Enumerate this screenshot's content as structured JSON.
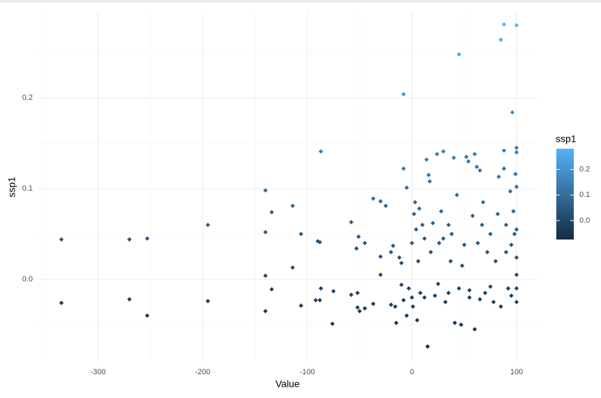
{
  "chart_data": {
    "type": "scatter",
    "x_label": "Value",
    "y_label": "ssp1",
    "x": [
      -335,
      -335,
      -270,
      -270,
      -253,
      -253,
      -195,
      -195,
      -140,
      -140,
      -140,
      -140,
      -134,
      -134,
      -114,
      -114,
      -106,
      -106,
      -90,
      -88,
      -92,
      -88,
      -87,
      -87,
      -75,
      -76,
      -58,
      -58,
      -53,
      -51,
      -52,
      -52,
      -50,
      -45,
      -45,
      -37,
      -37,
      -30,
      -30,
      -30,
      -25,
      -20,
      -20,
      -18,
      -16,
      -15,
      -12,
      -10,
      -10,
      -8,
      -8,
      -8,
      -5,
      -5,
      -3,
      0,
      0,
      1,
      2,
      3,
      4,
      5,
      6,
      7,
      8,
      10,
      12,
      14,
      15,
      16,
      17,
      18,
      20,
      22,
      24,
      26,
      28,
      30,
      32,
      35,
      37,
      38,
      40,
      41,
      43,
      45,
      45,
      47,
      50,
      52,
      54,
      55,
      58,
      60,
      60,
      62,
      63,
      65,
      67,
      70,
      72,
      75,
      78,
      80,
      82,
      83,
      85,
      88,
      88,
      88,
      90,
      92,
      94,
      95,
      96,
      97,
      98,
      99,
      100,
      100,
      100,
      100,
      100,
      100,
      100,
      100,
      100,
      95,
      85,
      75,
      65,
      55,
      35,
      25,
      12,
      30,
      48,
      68,
      90
    ],
    "values": [
      0.044,
      -0.026,
      0.044,
      -0.022,
      0.045,
      -0.04,
      0.06,
      -0.024,
      0.098,
      0.052,
      0.004,
      -0.035,
      0.074,
      -0.011,
      0.081,
      0.013,
      0.05,
      -0.029,
      0.042,
      0.041,
      -0.023,
      -0.023,
      0.141,
      -0.01,
      -0.013,
      -0.049,
      0.063,
      -0.017,
      0.034,
      0.047,
      -0.031,
      -0.015,
      -0.035,
      0.04,
      -0.032,
      0.089,
      -0.027,
      0.086,
      0.025,
      0.005,
      0.081,
      0.03,
      -0.028,
      0.037,
      -0.03,
      -0.048,
      0.024,
      0.018,
      -0.006,
      0.122,
      -0.023,
      0.204,
      0.101,
      -0.04,
      -0.01,
      0.04,
      -0.02,
      -0.03,
      0.072,
      0.085,
      0.055,
      -0.045,
      0.02,
      0.078,
      -0.015,
      0.06,
      0.045,
      0.132,
      -0.074,
      0.115,
      0.108,
      0.03,
      0.062,
      -0.018,
      0.138,
      0.04,
      0.075,
      0.141,
      -0.025,
      0.06,
      0.02,
      0.05,
      0.134,
      -0.048,
      0.093,
      0.248,
      -0.01,
      -0.05,
      0.038,
      0.135,
      0.13,
      -0.02,
      0.07,
      0.138,
      -0.055,
      0.124,
      0.04,
      0.12,
      0.06,
      -0.015,
      0.03,
      0.05,
      -0.025,
      0.02,
      0.072,
      0.113,
      0.264,
      0.281,
      0.142,
      0.122,
      0.06,
      -0.01,
      0.097,
      0.038,
      0.184,
      0.075,
      0.05,
      0.116,
      0.28,
      0.145,
      0.14,
      0.102,
      0.055,
      0.024,
      0.005,
      -0.01,
      -0.025,
      -0.018,
      -0.03,
      -0.008,
      -0.022,
      -0.012,
      -0.015,
      -0.005,
      -0.02,
      0.045,
      0.015,
      0.085,
      0.03
    ],
    "xlim": [
      -357,
      120
    ],
    "ylim": [
      -0.09,
      0.294
    ],
    "xticks": [
      -300,
      -200,
      -100,
      0,
      100
    ],
    "yticks": [
      {
        "value": 0,
        "label": "0.0"
      },
      0.1,
      0.2
    ],
    "x_minor_ticks": [
      -350,
      -250,
      -150,
      -50,
      50
    ],
    "y_minor_ticks": [
      -0.05,
      0.05,
      0.15,
      0.25
    ],
    "grid": true,
    "color_scale": {
      "title": "ssp1",
      "low": "#132B43",
      "high": "#56B1F7",
      "limits": [
        -0.074,
        0.281
      ],
      "ticks": [
        {
          "value": 0,
          "label": "0.0"
        },
        0.1,
        0.2
      ]
    }
  }
}
